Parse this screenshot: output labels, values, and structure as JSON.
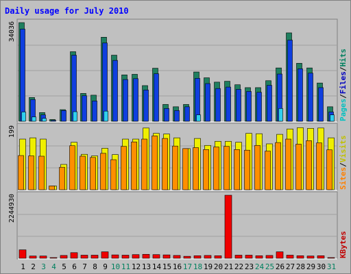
{
  "chart_data": {
    "type": "bar",
    "title": "Daily usage for July 2010",
    "categories": [
      "1",
      "2",
      "3",
      "4",
      "5",
      "6",
      "7",
      "8",
      "9",
      "10",
      "11",
      "12",
      "13",
      "14",
      "15",
      "16",
      "17",
      "18",
      "19",
      "20",
      "21",
      "22",
      "23",
      "24",
      "25",
      "26",
      "27",
      "28",
      "29",
      "30",
      "31"
    ],
    "weekend_days": [
      "3",
      "4",
      "10",
      "11",
      "17",
      "18",
      "24",
      "25",
      "31"
    ],
    "panels": [
      {
        "name": "hits-files-pages",
        "max_label": "34036",
        "ylim": [
          0,
          34036
        ],
        "series": [
          {
            "name": "Hits",
            "color": "#1f7f5f",
            "values": [
              34036,
              8200,
              3000,
              600,
              4000,
              24000,
              9600,
              9000,
              29000,
              22800,
              16000,
              16200,
              12300,
              18300,
              5800,
              5000,
              5800,
              17000,
              15000,
              13500,
              13800,
              12600,
              11600,
              11600,
              14000,
              18400,
              30500,
              20000,
              18400,
              13200,
              5000
            ]
          },
          {
            "name": "Files",
            "color": "#0f3fdf",
            "values": [
              31800,
              7500,
              2200,
              300,
              3700,
              22800,
              8800,
              7000,
              27000,
              21000,
              14400,
              14700,
              10800,
              16400,
              4400,
              3700,
              5000,
              14800,
              13000,
              11300,
              11800,
              11000,
              10300,
              10000,
              12400,
              16300,
              28000,
              18100,
              16600,
              11600,
              3200
            ]
          },
          {
            "name": "Pages",
            "color": "#2fcfef",
            "values": [
              3200,
              1500,
              1000,
              0,
              0,
              3300,
              0,
              0,
              3500,
              0,
              0,
              0,
              0,
              0,
              0,
              0,
              0,
              2200,
              0,
              0,
              0,
              0,
              0,
              0,
              0,
              4400,
              0,
              0,
              0,
              0,
              2200
            ]
          }
        ]
      },
      {
        "name": "visits-sites",
        "max_label": "199",
        "ylim": [
          0,
          199
        ],
        "series": [
          {
            "name": "Visits",
            "color": "#efef00",
            "values": [
              160,
              164,
              160,
              12,
              80,
              150,
              112,
              107,
              131,
              111,
              160,
              160,
              195,
              178,
              176,
              164,
              130,
              162,
              140,
              153,
              153,
              150,
              178,
              177,
              145,
              175,
              192,
              196,
              194,
              195,
              164
            ]
          },
          {
            "name": "Sites",
            "color": "#ff8f00",
            "values": [
              108,
              107,
              106,
              12,
              71,
              139,
              106,
              102,
              115,
              95,
              137,
              151,
              160,
              170,
              162,
              138,
              130,
              133,
              127,
              135,
              137,
              127,
              125,
              140,
              122,
              149,
              160,
              144,
              155,
              148,
              126
            ]
          }
        ]
      },
      {
        "name": "kbytes",
        "max_label": "2244930",
        "ylim": [
          0,
          2244930
        ],
        "series": [
          {
            "name": "KBytes",
            "color": "#ef0000",
            "values": [
              300000,
              80000,
              80000,
              20000,
              100000,
              200000,
              110000,
              110000,
              230000,
              120000,
              110000,
              130000,
              140000,
              130000,
              120000,
              100000,
              70000,
              90000,
              100000,
              90000,
              2244930,
              110000,
              110000,
              90000,
              100000,
              230000,
              110000,
              90000,
              80000,
              90000,
              20000
            ]
          }
        ]
      }
    ],
    "legend": {
      "panel1": [
        {
          "label": "Pages",
          "color": "#00c0c0"
        },
        {
          "label": "Files",
          "color": "#0000c0"
        },
        {
          "label": "Hits",
          "color": "#00805f"
        }
      ],
      "panel2": [
        {
          "label": "Sites",
          "color": "#ff8000"
        },
        {
          "label": "Visits",
          "color": "#c0c000"
        }
      ],
      "panel3": [
        {
          "label": "KBytes",
          "color": "#c00000"
        }
      ],
      "separator": "/"
    },
    "colors": {
      "background": "#c0c0c0",
      "title": "#0000ff",
      "weekday_label": "#000000",
      "weekend_label": "#00805f",
      "grid": "#a0a0a0"
    },
    "grid": true,
    "legend_position": "right"
  }
}
